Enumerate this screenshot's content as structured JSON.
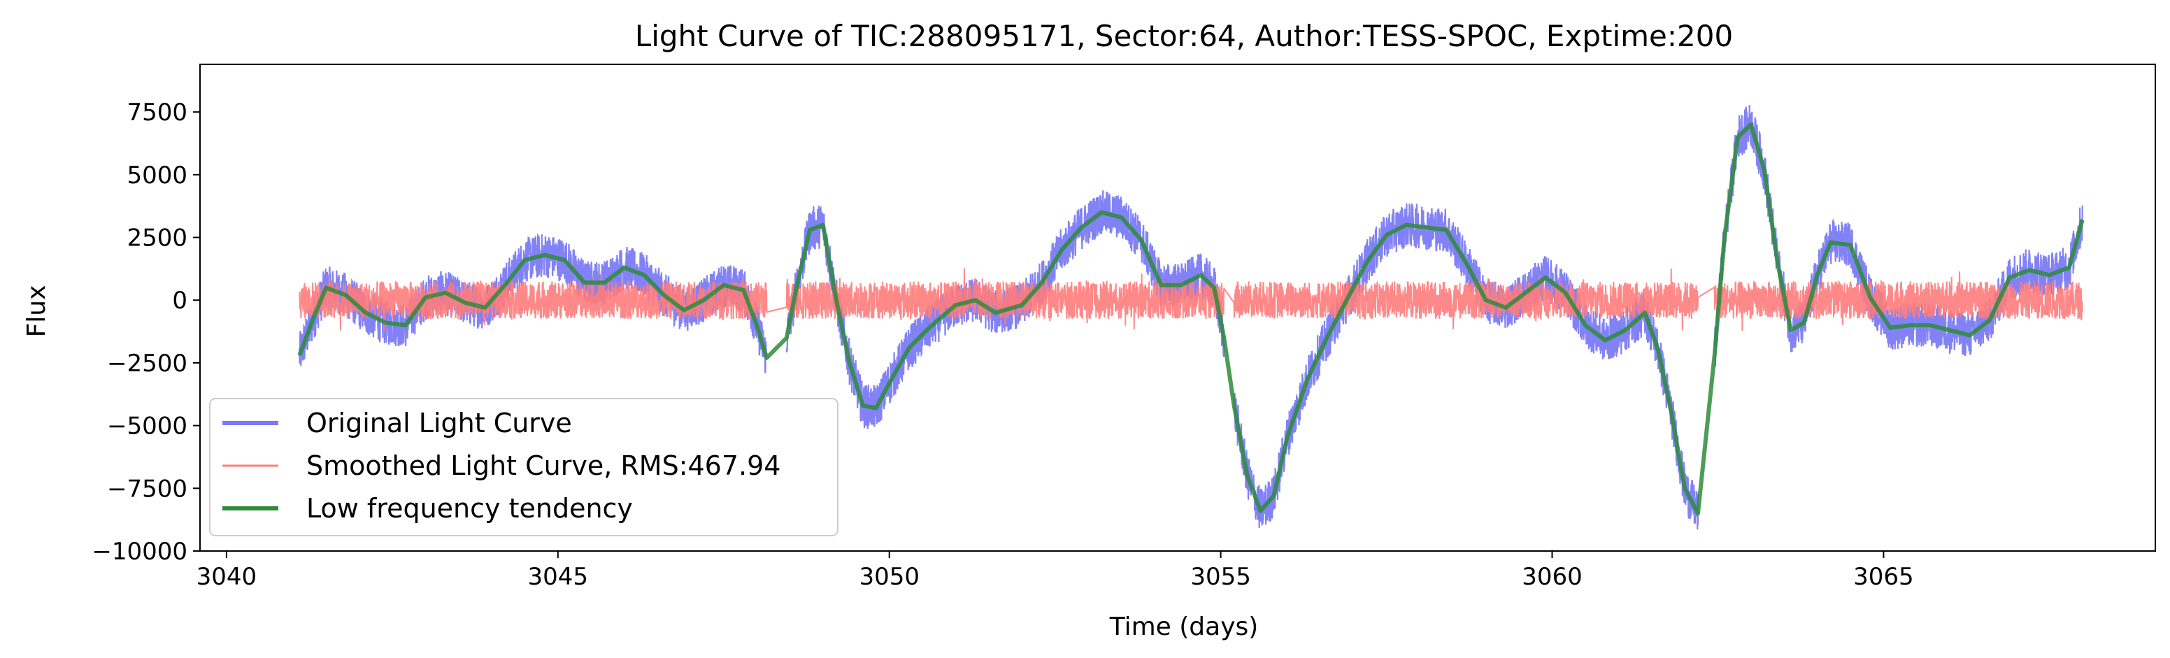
{
  "chart_data": {
    "type": "line",
    "title": "Light Curve of TIC:288095171, Sector:64, Author:TESS-SPOC, Exptime:200",
    "xlabel": "Time (days)",
    "ylabel": "Flux",
    "xlim": [
      3039.6,
      3069.1
    ],
    "ylim": [
      -10000,
      9400
    ],
    "x_ticks": [
      3040,
      3045,
      3050,
      3055,
      3060,
      3065
    ],
    "y_ticks": [
      -10000,
      -7500,
      -5000,
      -2500,
      0,
      2500,
      5000,
      7500
    ],
    "legend_position": "lower-left",
    "grid": false,
    "gaps": [
      [
        3048.15,
        3048.45
      ],
      [
        3055.05,
        3055.2
      ],
      [
        3062.2,
        3062.45
      ]
    ],
    "series": [
      {
        "name": "Original Light Curve",
        "color": "#7b7bf6",
        "noise_amplitude": 900,
        "x": [
          3041.1,
          3041.3,
          3041.5,
          3041.8,
          3042.1,
          3042.4,
          3042.7,
          3043.0,
          3043.3,
          3043.6,
          3043.9,
          3044.2,
          3044.5,
          3044.8,
          3045.1,
          3045.4,
          3045.7,
          3046.0,
          3046.3,
          3046.6,
          3046.9,
          3047.2,
          3047.5,
          3047.8,
          3048.0,
          3048.15,
          3048.45,
          3048.6,
          3048.8,
          3049.0,
          3049.2,
          3049.4,
          3049.6,
          3049.8,
          3050.0,
          3050.3,
          3050.6,
          3051.0,
          3051.3,
          3051.6,
          3052.0,
          3052.3,
          3052.6,
          3052.9,
          3053.2,
          3053.5,
          3053.8,
          3054.1,
          3054.4,
          3054.7,
          3054.9,
          3055.05,
          3055.2,
          3055.4,
          3055.6,
          3055.8,
          3056.0,
          3056.3,
          3056.6,
          3056.9,
          3057.2,
          3057.5,
          3057.8,
          3058.1,
          3058.4,
          3058.7,
          3059.0,
          3059.3,
          3059.6,
          3059.9,
          3060.2,
          3060.5,
          3060.8,
          3061.1,
          3061.4,
          3061.6,
          3061.8,
          3062.0,
          3062.2,
          3062.45,
          3062.6,
          3062.8,
          3063.0,
          3063.2,
          3063.4,
          3063.6,
          3063.8,
          3064.0,
          3064.2,
          3064.5,
          3064.8,
          3065.1,
          3065.4,
          3065.7,
          3066.0,
          3066.3,
          3066.6,
          3066.9,
          3067.2,
          3067.5,
          3067.8,
          3068.0
        ],
        "y": [
          -2200,
          -800,
          500,
          200,
          -500,
          -900,
          -1000,
          100,
          300,
          -100,
          -300,
          600,
          1600,
          1800,
          1600,
          700,
          700,
          1300,
          1000,
          200,
          -400,
          0,
          600,
          400,
          -1000,
          -2300,
          -1500,
          500,
          2800,
          3000,
          0,
          -2500,
          -4200,
          -4300,
          -3300,
          -1900,
          -1100,
          -200,
          0,
          -500,
          -200,
          700,
          2000,
          2900,
          3500,
          3300,
          2400,
          600,
          600,
          1000,
          500,
          -1500,
          -4200,
          -7000,
          -8400,
          -7800,
          -5500,
          -3200,
          -1500,
          0,
          1500,
          2600,
          3000,
          2900,
          2800,
          1500,
          0,
          -300,
          300,
          900,
          300,
          -1000,
          -1600,
          -1200,
          -500,
          -2000,
          -4500,
          -7500,
          -8500,
          -2200,
          2500,
          6500,
          7000,
          5200,
          1500,
          -1200,
          -900,
          1000,
          2300,
          2200,
          100,
          -1100,
          -1000,
          -1000,
          -1200,
          -1400,
          -800,
          900,
          1200,
          1000,
          1300,
          3200
        ]
      },
      {
        "name": "Smoothed Light Curve, RMS:467.94",
        "color": "#ff7b7b",
        "rms": 467.94,
        "x": [
          3041.1,
          3048.15,
          3048.45,
          3055.05,
          3055.2,
          3062.2,
          3062.45,
          3068.0
        ],
        "y": [
          0,
          0,
          0,
          0,
          0,
          0,
          0,
          0
        ]
      },
      {
        "name": "Low frequency tendency",
        "color": "#2e8b3a",
        "x": [
          3041.1,
          3041.3,
          3041.5,
          3041.8,
          3042.1,
          3042.4,
          3042.7,
          3043.0,
          3043.3,
          3043.6,
          3043.9,
          3044.2,
          3044.5,
          3044.8,
          3045.1,
          3045.4,
          3045.7,
          3046.0,
          3046.3,
          3046.6,
          3046.9,
          3047.2,
          3047.5,
          3047.8,
          3048.0,
          3048.15,
          3048.45,
          3048.6,
          3048.8,
          3049.0,
          3049.2,
          3049.4,
          3049.6,
          3049.8,
          3050.0,
          3050.3,
          3050.6,
          3051.0,
          3051.3,
          3051.6,
          3052.0,
          3052.3,
          3052.6,
          3052.9,
          3053.2,
          3053.5,
          3053.8,
          3054.1,
          3054.4,
          3054.7,
          3054.9,
          3055.05,
          3055.2,
          3055.4,
          3055.6,
          3055.8,
          3056.0,
          3056.3,
          3056.6,
          3056.9,
          3057.2,
          3057.5,
          3057.8,
          3058.1,
          3058.4,
          3058.7,
          3059.0,
          3059.3,
          3059.6,
          3059.9,
          3060.2,
          3060.5,
          3060.8,
          3061.1,
          3061.4,
          3061.6,
          3061.8,
          3062.0,
          3062.2,
          3062.45,
          3062.6,
          3062.8,
          3063.0,
          3063.2,
          3063.4,
          3063.6,
          3063.8,
          3064.0,
          3064.2,
          3064.5,
          3064.8,
          3065.1,
          3065.4,
          3065.7,
          3066.0,
          3066.3,
          3066.6,
          3066.9,
          3067.2,
          3067.5,
          3067.8,
          3068.0
        ],
        "y": [
          -2200,
          -800,
          500,
          200,
          -500,
          -900,
          -1000,
          100,
          300,
          -100,
          -300,
          600,
          1600,
          1800,
          1600,
          700,
          700,
          1300,
          1000,
          200,
          -400,
          0,
          600,
          400,
          -1000,
          -2300,
          -1500,
          500,
          2800,
          3000,
          0,
          -2500,
          -4200,
          -4300,
          -3300,
          -1900,
          -1100,
          -200,
          0,
          -500,
          -200,
          700,
          2000,
          2900,
          3500,
          3300,
          2400,
          600,
          600,
          1000,
          500,
          -1500,
          -4200,
          -7000,
          -8400,
          -7800,
          -5500,
          -3200,
          -1500,
          0,
          1500,
          2600,
          3000,
          2900,
          2800,
          1500,
          0,
          -300,
          300,
          900,
          300,
          -1000,
          -1600,
          -1200,
          -500,
          -2000,
          -4500,
          -7500,
          -8500,
          -2200,
          2500,
          6500,
          7000,
          5200,
          1500,
          -1200,
          -900,
          1000,
          2300,
          2200,
          100,
          -1100,
          -1000,
          -1000,
          -1200,
          -1400,
          -800,
          900,
          1200,
          1000,
          1300,
          3200
        ]
      }
    ]
  }
}
